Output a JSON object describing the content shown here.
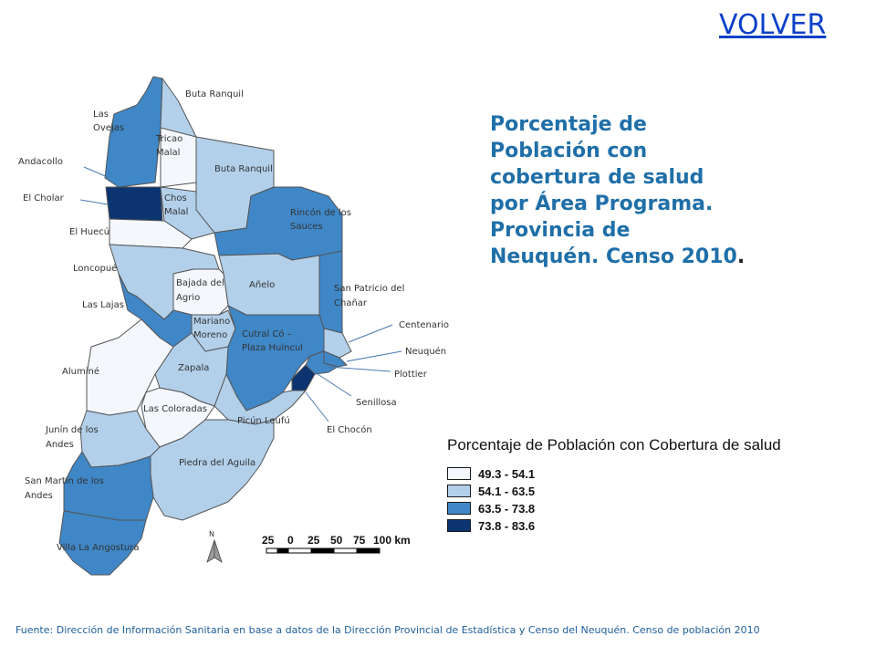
{
  "header": {
    "volver": "VOLVER"
  },
  "title": {
    "lines": [
      "Porcentaje de",
      "Población con",
      "cobertura de salud",
      "por Área Programa.",
      "Provincia de",
      "Neuquén. Censo 2010"
    ],
    "suffix": "."
  },
  "legend": {
    "title": "Porcentaje de Población con Cobertura de salud",
    "items": [
      {
        "label": "49.3 - 54.1",
        "color": "#f4f8fd"
      },
      {
        "label": "54.1 - 63.5",
        "color": "#b3d0ea"
      },
      {
        "label": "63.5 - 73.8",
        "color": "#3f87c7"
      },
      {
        "label": "73.8 - 83.6",
        "color": "#0c3470"
      }
    ]
  },
  "scale": {
    "ticks": [
      "25",
      "0",
      "25",
      "50",
      "75",
      "100 km"
    ],
    "north": "N"
  },
  "regions": {
    "buta_ranquil": "Buta Ranquil",
    "las_ovejas": "Las Ovejas",
    "tricao_malal": "Tricao Malal",
    "andacollo": "Andacollo",
    "buta_ranquil_2": "Buta Ranquil",
    "el_cholar": "El Cholar",
    "chos_malal": "Chos Malal",
    "rincon": "Rincón de los Sauces",
    "el_huecu": "El Huecú",
    "loncopue": "Loncopué",
    "anelo": "Añelo",
    "bajada_agrio": "Bajada del Agrio",
    "san_patricio": "San Patricio del Chañar",
    "las_lajas": "Las Lajas",
    "mariano_moreno": "Mariano Moreno",
    "centenario": "Centenario",
    "cutral_co": "Cutral Có – Plaza Huincul",
    "neuquen": "Neuquén",
    "alumine": "Aluminé",
    "zapala": "Zapala",
    "plottier": "Plottier",
    "senillosa": "Senillosa",
    "las_coloradas": "Las Coloradas",
    "picun_leufu": "Picún Leufú",
    "el_chocon": "El Chocón",
    "junin": "Junín de los Andes",
    "piedra_aguila": "Piedra del Aguila",
    "san_martin": "San Martín de los Andes",
    "villa_angostura": "Villa La Angostura"
  },
  "footer": "Fuente: Dirección de Información Sanitaria en base a datos de la Dirección Provincial de Estadística y Censo del Neuquén. Censo de población 2010"
}
